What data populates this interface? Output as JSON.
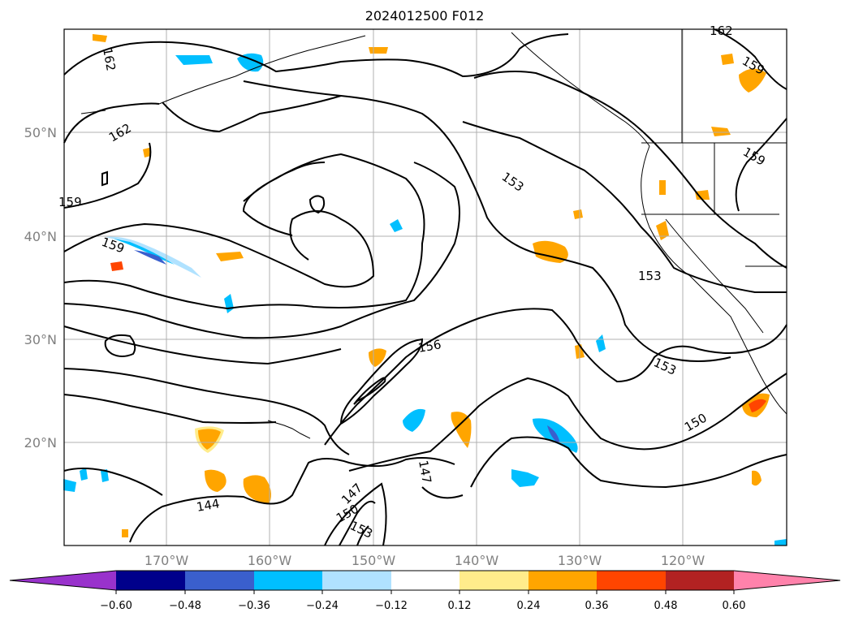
{
  "map": {
    "title": "2024012500 F012",
    "lat_labels": [
      "50°N",
      "40°N",
      "30°N",
      "20°N"
    ],
    "lon_labels": [
      "170°W",
      "160°W",
      "150°W",
      "140°W",
      "130°W",
      "120°W"
    ],
    "contour_labels": [
      "162",
      "162",
      "162",
      "159",
      "159",
      "159",
      "159",
      "153",
      "153",
      "153",
      "156",
      "150",
      "147",
      "147",
      "150",
      "153",
      "144"
    ]
  },
  "colorbar": {
    "ticks": [
      "−0.60",
      "−0.48",
      "−0.36",
      "−0.24",
      "−0.12",
      "0.12",
      "0.24",
      "0.36",
      "0.48",
      "0.60"
    ],
    "colors": [
      "#9932cc",
      "#00008b",
      "#3a5fcd",
      "#00bfff",
      "#b0e2ff",
      "#ffffff",
      "#ffec8b",
      "#ffa500",
      "#ff4500",
      "#b22222",
      "#ff82ab"
    ]
  }
}
